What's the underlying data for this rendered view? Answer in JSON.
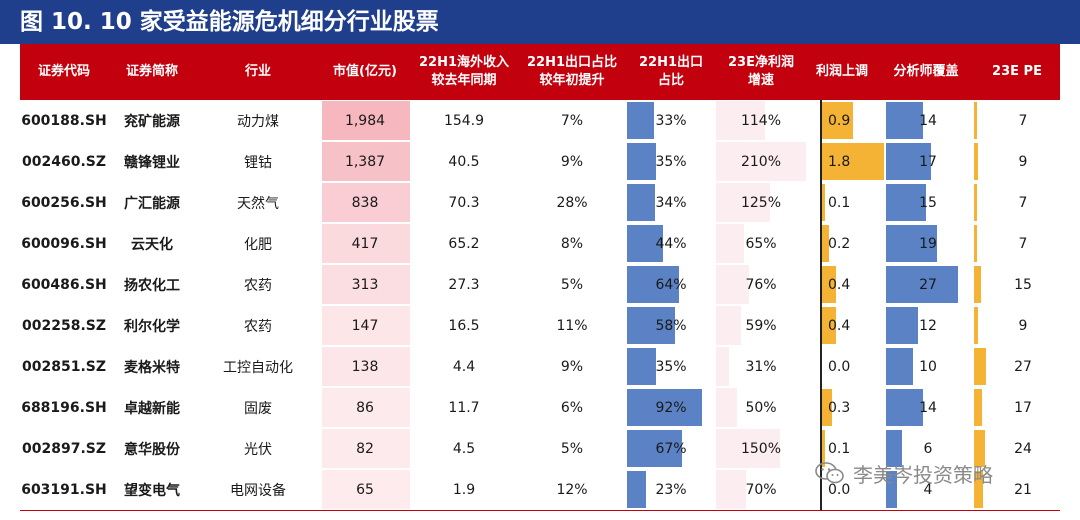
{
  "title": "图 10. 10 家受益能源危机细分行业股票",
  "columns": [
    "证券代码",
    "证券简称",
    "行业",
    "市值(亿元)",
    "22H1海外收入\n较去年同期",
    "22H1出口占比\n较年初提升",
    "22H1出口\n占比",
    "23E净利润\n增速",
    "利润上调",
    "分析师覆盖",
    "23E PE"
  ],
  "rows": [
    {
      "code": "600188.SH",
      "name": "兖矿能源",
      "industry": "动力煤",
      "mktcap": "1,984",
      "mktcap_num": 1984,
      "overseas": "154.9",
      "export_up": "7%",
      "export_share": "33%",
      "export_share_num": 33,
      "np_growth": "114%",
      "np_growth_num": 114,
      "profit_rev": "0.9",
      "profit_rev_num": 0.9,
      "analysts": "14",
      "analysts_num": 14,
      "pe": "7",
      "pe_num": 7
    },
    {
      "code": "002460.SZ",
      "name": "赣锋锂业",
      "industry": "锂钴",
      "mktcap": "1,387",
      "mktcap_num": 1387,
      "overseas": "40.5",
      "export_up": "9%",
      "export_share": "35%",
      "export_share_num": 35,
      "np_growth": "210%",
      "np_growth_num": 210,
      "profit_rev": "1.8",
      "profit_rev_num": 1.8,
      "analysts": "17",
      "analysts_num": 17,
      "pe": "9",
      "pe_num": 9
    },
    {
      "code": "600256.SH",
      "name": "广汇能源",
      "industry": "天然气",
      "mktcap": "838",
      "mktcap_num": 838,
      "overseas": "70.3",
      "export_up": "28%",
      "export_share": "34%",
      "export_share_num": 34,
      "np_growth": "125%",
      "np_growth_num": 125,
      "profit_rev": "0.1",
      "profit_rev_num": 0.1,
      "analysts": "15",
      "analysts_num": 15,
      "pe": "7",
      "pe_num": 7
    },
    {
      "code": "600096.SH",
      "name": "云天化",
      "industry": "化肥",
      "mktcap": "417",
      "mktcap_num": 417,
      "overseas": "65.2",
      "export_up": "8%",
      "export_share": "44%",
      "export_share_num": 44,
      "np_growth": "65%",
      "np_growth_num": 65,
      "profit_rev": "0.2",
      "profit_rev_num": 0.2,
      "analysts": "19",
      "analysts_num": 19,
      "pe": "7",
      "pe_num": 7
    },
    {
      "code": "600486.SH",
      "name": "扬农化工",
      "industry": "农药",
      "mktcap": "313",
      "mktcap_num": 313,
      "overseas": "27.3",
      "export_up": "5%",
      "export_share": "64%",
      "export_share_num": 64,
      "np_growth": "76%",
      "np_growth_num": 76,
      "profit_rev": "0.4",
      "profit_rev_num": 0.4,
      "analysts": "27",
      "analysts_num": 27,
      "pe": "15",
      "pe_num": 15
    },
    {
      "code": "002258.SZ",
      "name": "利尔化学",
      "industry": "农药",
      "mktcap": "147",
      "mktcap_num": 147,
      "overseas": "16.5",
      "export_up": "11%",
      "export_share": "58%",
      "export_share_num": 58,
      "np_growth": "59%",
      "np_growth_num": 59,
      "profit_rev": "0.4",
      "profit_rev_num": 0.4,
      "analysts": "12",
      "analysts_num": 12,
      "pe": "9",
      "pe_num": 9
    },
    {
      "code": "002851.SZ",
      "name": "麦格米特",
      "industry": "工控自动化",
      "mktcap": "138",
      "mktcap_num": 138,
      "overseas": "4.4",
      "export_up": "9%",
      "export_share": "35%",
      "export_share_num": 35,
      "np_growth": "31%",
      "np_growth_num": 31,
      "profit_rev": "0.0",
      "profit_rev_num": 0.0,
      "analysts": "10",
      "analysts_num": 10,
      "pe": "27",
      "pe_num": 27
    },
    {
      "code": "688196.SH",
      "name": "卓越新能",
      "industry": "固废",
      "mktcap": "86",
      "mktcap_num": 86,
      "overseas": "11.7",
      "export_up": "6%",
      "export_share": "92%",
      "export_share_num": 92,
      "np_growth": "50%",
      "np_growth_num": 50,
      "profit_rev": "0.3",
      "profit_rev_num": 0.3,
      "analysts": "14",
      "analysts_num": 14,
      "pe": "17",
      "pe_num": 17
    },
    {
      "code": "002897.SZ",
      "name": "意华股份",
      "industry": "光伏",
      "mktcap": "82",
      "mktcap_num": 82,
      "overseas": "4.5",
      "export_up": "5%",
      "export_share": "67%",
      "export_share_num": 67,
      "np_growth": "150%",
      "np_growth_num": 150,
      "profit_rev": "0.1",
      "profit_rev_num": 0.1,
      "analysts": "6",
      "analysts_num": 6,
      "pe": "24",
      "pe_num": 24
    },
    {
      "code": "603191.SH",
      "name": "望变电气",
      "industry": "电网设备",
      "mktcap": "65",
      "mktcap_num": 65,
      "overseas": "1.9",
      "export_up": "12%",
      "export_share": "23%",
      "export_share_num": 23,
      "np_growth": "70%",
      "np_growth_num": 70,
      "profit_rev": "0.0",
      "profit_rev_num": 0.0,
      "analysts": "4",
      "analysts_num": 4,
      "pe": "21",
      "pe_num": 21
    }
  ],
  "watermark": "李美岑投资策略",
  "watermark_icon": "wechat-icon",
  "colors": {
    "title_bg": "#1f3e8c",
    "header_bg": "#c3000d",
    "bar_blue": "#5a82c4",
    "bar_orange": "#f5b335",
    "cap_max": "#f6b7bf",
    "cap_min": "#fff7f8"
  }
}
